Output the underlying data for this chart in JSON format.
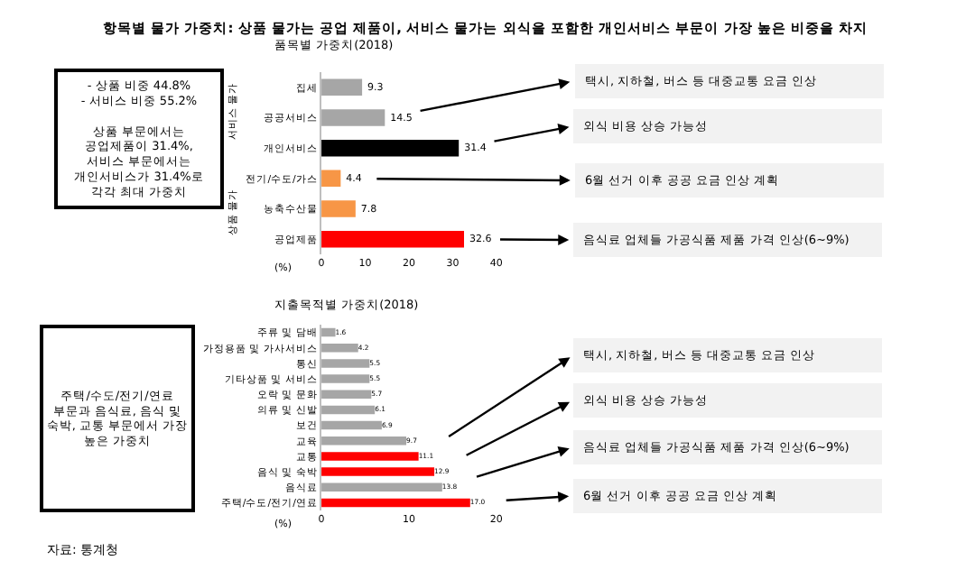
{
  "chart_data": [
    {
      "type": "bar",
      "orientation": "horizontal",
      "title": "품목별 가중치(2018)",
      "xlabel": "(%)",
      "categories": [
        "집세",
        "공공서비스",
        "개인서비스",
        "전기/수도/가스",
        "농축수산물",
        "공업제품"
      ],
      "values": [
        9.3,
        14.5,
        31.4,
        4.4,
        7.8,
        32.6
      ],
      "colors": [
        "#a6a6a6",
        "#a6a6a6",
        "#000000",
        "#f79646",
        "#f79646",
        "#ff0000"
      ],
      "xlim": [
        0,
        40
      ],
      "xticks": [
        0,
        10,
        20,
        30,
        40
      ],
      "data_labels": true,
      "annotations": [
        "항목별 물가 가중치: 상품 물가는 공업 제품이, 서비스 물가는 외식을 포함한 개인서비스 부문이 가장 높은 비중을 차지",
        "- 상품 비중 44.8%\n- 서비스 비중 55.2%\n\n상품 부문에서는\n공업제품이 31.4%,\n서비스 부문에서는\n개인서비스가 31.4%로\n각각 최대 가중치",
        "서비스 물가",
        "상품 물가",
        {
          "text": "택시, 지하철, 버스 등 대중교통 요금 인상",
          "x": 14.5,
          "y": "공공서비스"
        },
        {
          "text": "외식 비용 상승 가능성",
          "x": 31.4,
          "y": "개인서비스"
        },
        {
          "text": "6월 선거 이후 공공 요금 인상 계획",
          "x": 4.4,
          "y": "전기/수도/가스"
        },
        {
          "text": "음식료 업체들 가공식품 제품 가격 인상(6~9%)",
          "x": 32.6,
          "y": "공업제품"
        }
      ]
    },
    {
      "type": "bar",
      "orientation": "horizontal",
      "title": "지출목적별 가중치(2018)",
      "xlabel": "(%)",
      "categories": [
        "주류 및 담배",
        "가정용품 및 가사서비스",
        "통신",
        "기타상품 및 서비스",
        "오락 및 문화",
        "의류 및 신발",
        "보건",
        "교육",
        "교통",
        "음식 및 숙박",
        "음식료",
        "주택/수도/전기/연료"
      ],
      "values": [
        1.6,
        4.2,
        5.5,
        5.5,
        5.7,
        6.1,
        6.9,
        9.7,
        11.1,
        12.9,
        13.8,
        17.0
      ],
      "value_labels": [
        "1.6",
        "4.2",
        "5.5",
        "5.5",
        "5.7",
        "6.1",
        "6.9",
        "9.7",
        "11.1",
        "12.9",
        "13.8",
        "17.0"
      ],
      "colors": [
        "#a6a6a6",
        "#a6a6a6",
        "#a6a6a6",
        "#a6a6a6",
        "#a6a6a6",
        "#a6a6a6",
        "#a6a6a6",
        "#a6a6a6",
        "#ff0000",
        "#ff0000",
        "#a6a6a6",
        "#ff0000"
      ],
      "xlim": [
        0,
        20
      ],
      "xticks": [
        0,
        10,
        20
      ],
      "annotations": [
        "주택/수도/전기/연료\n부문과 음식료, 음식 및\n숙박, 교통 부문에서 가장\n높은 가중치",
        "자료: 통계청",
        {
          "text": "택시, 지하철, 버스 등 대중교통 요금 인상",
          "x": 11.1,
          "y": "교통"
        },
        {
          "text": "외식 비용 상승 가능성",
          "x": 12.9,
          "y": "음식 및 숙박"
        },
        {
          "text": "음식료 업체들 가공식품 제품 가격 인상(6~9%)",
          "x": 13.8,
          "y": "음식료"
        },
        {
          "text": "6월 선거 이후 공공 요금 인상 계획",
          "x": 17.0,
          "y": "주택/수도/전기/연료"
        }
      ]
    }
  ]
}
